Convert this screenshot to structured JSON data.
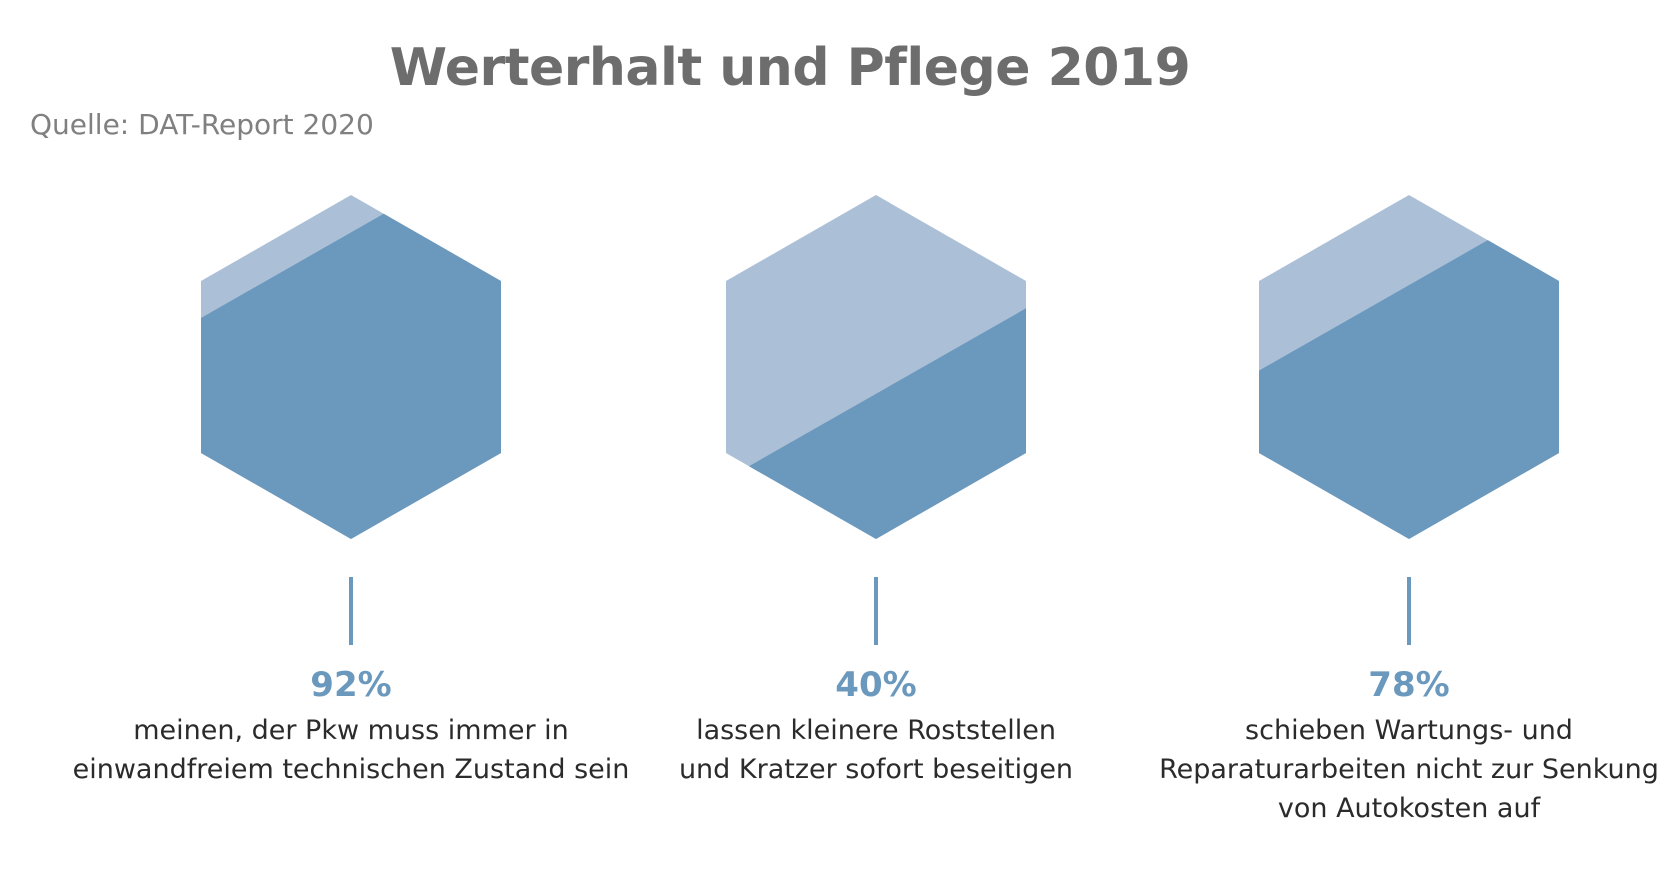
{
  "title": "Werterhalt und Pflege 2019",
  "source": "Quelle: DAT-Report 2020",
  "colors": {
    "dark": "#6b98bd",
    "light": "#abbfd7",
    "accent": "#6b98bd",
    "text": "#2b2b2b",
    "title": "#6d6d6d"
  },
  "chart_data": {
    "type": "hexagon-fill",
    "title": "Werterhalt und Pflege 2019",
    "subtitle": "Quelle: DAT-Report 2020",
    "unit": "%",
    "items": [
      {
        "value": 92,
        "label": "92%",
        "lines": [
          "meinen, der Pkw muss immer in",
          "einwandfreiem technischen Zustand sein"
        ]
      },
      {
        "value": 40,
        "label": "40%",
        "lines": [
          "lassen kleinere Roststellen",
          "und Kratzer sofort beseitigen"
        ]
      },
      {
        "value": 78,
        "label": "78%",
        "lines": [
          "schieben Wartungs- und",
          "Reparaturarbeiten nicht zur Senkung",
          "von Autokosten auf"
        ]
      }
    ]
  }
}
